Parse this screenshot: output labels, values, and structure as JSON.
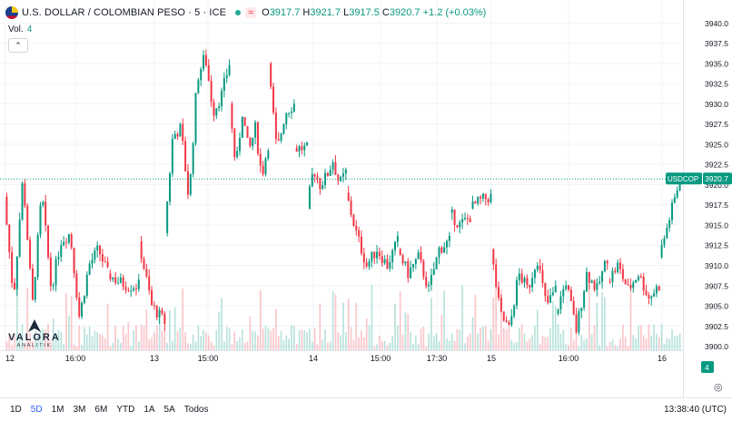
{
  "header": {
    "symbol": "U.S. DOLLAR / COLOMBIAN PESO · 5 · ICE",
    "open_label": "O",
    "open": "3917.7",
    "high_label": "H",
    "high": "3921.7",
    "low_label": "L",
    "low": "3917.5",
    "close_label": "C",
    "close": "3920.7",
    "change": "+1.2 (+0.03%)",
    "wave_icon": "≈"
  },
  "volume": {
    "label": "Vol.",
    "value": "4"
  },
  "collapse_icon": "⌃",
  "logo": {
    "name": "VALORA",
    "sub": "ANALITIK"
  },
  "price_tag": {
    "symbol": "USDCOP",
    "value": "3920.7"
  },
  "volume_tag": "4",
  "timeframes": [
    "1D",
    "5D",
    "1M",
    "3M",
    "6M",
    "YTD",
    "1A",
    "5A",
    "Todos"
  ],
  "active_timeframe": "5D",
  "clock": "13:38:40 (UTC)",
  "colors": {
    "up": "#089981",
    "down": "#f23645",
    "grid": "#f0f3fa",
    "accent": "#2962ff"
  },
  "chart_data": {
    "type": "candlestick",
    "y_axis_ticks": [
      "3900.0",
      "3902.5",
      "3905.0",
      "3907.5",
      "3910.0",
      "3912.5",
      "3915.0",
      "3917.5",
      "3920.0",
      "3922.5",
      "3925.0",
      "3927.5",
      "3930.0",
      "3932.5",
      "3935.0",
      "3937.5",
      "3940.0"
    ],
    "ylim": [
      3899.5,
      3941.5
    ],
    "x_axis_ticks": [
      "12",
      "16:00",
      "13",
      "15:00",
      "14",
      "15:00",
      "17:30",
      "15",
      "16:00",
      "16"
    ],
    "last_price": 3920.7,
    "segments": [
      {
        "n": 40,
        "path": [
          3918.5,
          3906,
          3921,
          3905,
          3919,
          3907,
          3913,
          3914,
          3903.5,
          3910,
          3912,
          3909
        ]
      },
      {
        "n": 12,
        "path": [
          3909,
          3908,
          3907.5,
          3907.5
        ]
      },
      {
        "n": 10,
        "path": [
          3913,
          3905,
          3903
        ]
      },
      {
        "n": 25,
        "path": [
          3914,
          3926,
          3927,
          3918,
          3933,
          3936,
          3929,
          3931,
          3935
        ]
      },
      {
        "n": 15,
        "path": [
          3930,
          3922,
          3929,
          3924,
          3927,
          3921,
          3925
        ]
      },
      {
        "n": 10,
        "path": [
          3935,
          3924,
          3929,
          3930
        ]
      },
      {
        "n": 5,
        "path": [
          3924.5,
          3924.5
        ]
      },
      {
        "n": 15,
        "path": [
          3917,
          3922,
          3920,
          3921,
          3923,
          3920,
          3921.5
        ]
      },
      {
        "n": 20,
        "path": [
          3919,
          3914,
          3910,
          3912,
          3910,
          3913
        ]
      },
      {
        "n": 20,
        "path": [
          3912,
          3909,
          3911,
          3907,
          3912,
          3913
        ]
      },
      {
        "n": 8,
        "path": [
          3916.5,
          3915,
          3916
        ]
      },
      {
        "n": 8,
        "path": [
          3917,
          3918,
          3918.5
        ]
      },
      {
        "n": 25,
        "path": [
          3912,
          3904,
          3902,
          3909,
          3907,
          3911,
          3905,
          3907
        ]
      },
      {
        "n": 20,
        "path": [
          3904,
          3908,
          3902,
          3909,
          3907,
          3911
        ]
      },
      {
        "n": 20,
        "path": [
          3908,
          3910,
          3907,
          3909,
          3906,
          3907.5
        ]
      },
      {
        "n": 8,
        "path": [
          3911,
          3920.7
        ]
      }
    ]
  }
}
